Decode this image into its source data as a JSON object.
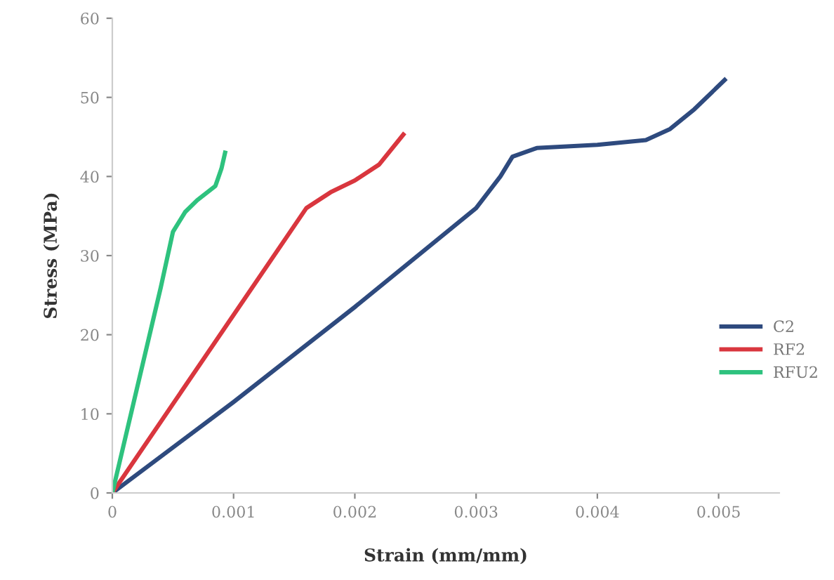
{
  "chart_data": {
    "type": "line",
    "xlabel": "Strain (mm/mm)",
    "ylabel": "Stress (MPa)",
    "xlim": [
      0,
      0.0055
    ],
    "ylim": [
      0,
      60
    ],
    "xticks": [
      {
        "value": 0,
        "label": "0"
      },
      0.001,
      0.002,
      0.003,
      0.004,
      0.005
    ],
    "yticks": [
      0,
      10,
      20,
      30,
      40,
      50,
      60
    ],
    "grid": false,
    "legend": "right",
    "line_style": "solid",
    "marker": "none",
    "series": [
      {
        "name": "C2",
        "color": "#2e4a7e",
        "x": [
          0,
          0.001,
          0.002,
          0.003,
          0.0032,
          0.0033,
          0.0035,
          0.004,
          0.0044,
          0.0046,
          0.0048,
          0.00505
        ],
        "values": [
          0,
          11.5,
          23.5,
          36,
          40,
          42.5,
          43.6,
          44,
          44.6,
          46,
          48.5,
          52.2
        ]
      },
      {
        "name": "RF2",
        "color": "#d9363e",
        "x": [
          0,
          0.001,
          0.0016,
          0.0018,
          0.002,
          0.0022,
          0.0024
        ],
        "values": [
          0,
          22.5,
          36,
          38,
          39.5,
          41.5,
          45.3
        ]
      },
      {
        "name": "RFU2",
        "color": "#2ec27e",
        "x": [
          0,
          0.0002,
          0.0004,
          0.0005,
          0.0006,
          0.0007,
          0.00085,
          0.0009,
          0.00093
        ],
        "values": [
          0,
          13,
          26,
          33,
          35.5,
          37,
          38.8,
          41,
          43
        ]
      }
    ]
  }
}
